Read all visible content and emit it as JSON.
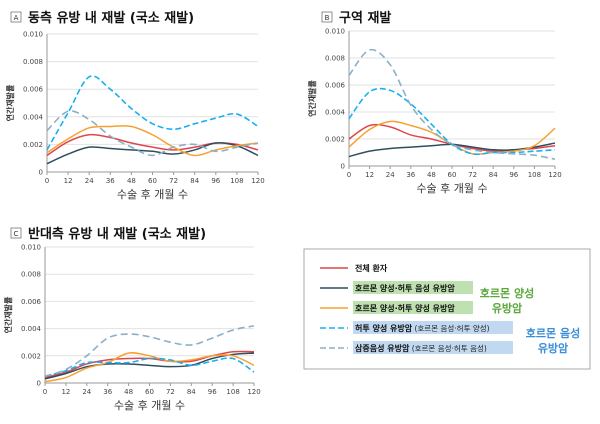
{
  "legend": {
    "series": [
      {
        "label": "전체 환자",
        "sub": "",
        "color": "#e0454a",
        "dash": false,
        "hl": ""
      },
      {
        "label": "호르몬 양성·허투 음성 유방암",
        "sub": "",
        "color": "#2f4f5f",
        "dash": false,
        "hl": "#bfe0b0"
      },
      {
        "label": "호르몬 양성·허투 양성 유방암",
        "sub": "",
        "color": "#f7a030",
        "dash": false,
        "hl": "#bfe0b0"
      },
      {
        "label": "허투 양성 유방암",
        "sub": "(호르몬 음성·허투 양성)",
        "color": "#1ab0f0",
        "dash": true,
        "hl": "#c0d8f0"
      },
      {
        "label": "삼중음성 유방암",
        "sub": "(호르몬 음성·허투 음성)",
        "color": "#8ab0c8",
        "dash": true,
        "hl": "#c0d8f0"
      }
    ],
    "group1": [
      "호르몬 양성",
      "유방암"
    ],
    "group1_color": "#5aa83a",
    "group2": [
      "호르몬 음성",
      "유방암"
    ],
    "group2_color": "#3a8ed8"
  },
  "chart_data": [
    {
      "type": "line",
      "badge": "A",
      "title": "동측 유방 내 재발 (국소 재발)",
      "xlabel": "수술 후 개월 수",
      "ylabel": "연간재발률",
      "x": [
        0,
        12,
        24,
        36,
        48,
        60,
        72,
        84,
        96,
        108,
        120
      ],
      "xticks": [
        "0",
        "12",
        "24",
        "36",
        "48",
        "60",
        "72",
        "84",
        "96",
        "108",
        "120"
      ],
      "yticks": [
        "0",
        "0.002",
        "0.004",
        "0.006",
        "0.008",
        "0.010"
      ],
      "ylim": [
        0,
        0.01
      ],
      "grid": true,
      "series": [
        {
          "name": "전체 환자",
          "values": [
            0.0012,
            0.0022,
            0.0027,
            0.0025,
            0.0021,
            0.0018,
            0.0016,
            0.0018,
            0.0021,
            0.002,
            0.0016
          ]
        },
        {
          "name": "호르몬 양성·허투 음성 유방암",
          "values": [
            0.0006,
            0.0013,
            0.0018,
            0.0017,
            0.0016,
            0.0015,
            0.0013,
            0.0016,
            0.0021,
            0.0019,
            0.0012
          ]
        },
        {
          "name": "호르몬 양성·허투 양성 유방암",
          "values": [
            0.0014,
            0.0024,
            0.0032,
            0.0033,
            0.0033,
            0.0027,
            0.0018,
            0.0012,
            0.0016,
            0.0019,
            0.0021
          ]
        },
        {
          "name": "허투 양성 유방암",
          "values": [
            0.0016,
            0.0043,
            0.0069,
            0.006,
            0.0046,
            0.0035,
            0.0031,
            0.0035,
            0.0039,
            0.0042,
            0.0033
          ]
        },
        {
          "name": "삼중음성 유방암",
          "values": [
            0.003,
            0.0044,
            0.0038,
            0.0026,
            0.0018,
            0.0012,
            0.0018,
            0.002,
            0.0015,
            0.0018,
            0.0021
          ]
        }
      ]
    },
    {
      "type": "line",
      "badge": "B",
      "title": "구역 재발",
      "xlabel": "수술 후 개월 수",
      "ylabel": "연간재발률",
      "x": [
        0,
        12,
        24,
        36,
        48,
        60,
        72,
        84,
        96,
        108,
        120
      ],
      "xticks": [
        "0",
        "12",
        "24",
        "36",
        "48",
        "60",
        "72",
        "84",
        "96",
        "108",
        "120"
      ],
      "yticks": [
        "0",
        "0.002",
        "0.004",
        "0.006",
        "0.008",
        "0.010"
      ],
      "ylim": [
        0,
        0.01
      ],
      "grid": true,
      "series": [
        {
          "name": "전체 환자",
          "values": [
            0.002,
            0.003,
            0.0029,
            0.0023,
            0.002,
            0.0016,
            0.0013,
            0.0011,
            0.0012,
            0.0013,
            0.0015
          ]
        },
        {
          "name": "호르몬 양성·허투 음성 유방암",
          "values": [
            0.0007,
            0.0011,
            0.0013,
            0.0014,
            0.0015,
            0.0016,
            0.0014,
            0.0012,
            0.0012,
            0.0014,
            0.0017
          ]
        },
        {
          "name": "호르몬 양성·허투 양성 유방암",
          "values": [
            0.0014,
            0.0027,
            0.0033,
            0.003,
            0.0025,
            0.0016,
            0.0009,
            0.001,
            0.0011,
            0.0015,
            0.0028
          ]
        },
        {
          "name": "허투 양성 유방암",
          "values": [
            0.0035,
            0.0055,
            0.0056,
            0.0046,
            0.0031,
            0.0016,
            0.0009,
            0.001,
            0.001,
            0.0011,
            0.0012
          ]
        },
        {
          "name": "삼중음성 유방암",
          "values": [
            0.0067,
            0.0086,
            0.0075,
            0.0045,
            0.0027,
            0.0016,
            0.0012,
            0.001,
            0.0009,
            0.0008,
            0.0005
          ]
        }
      ]
    },
    {
      "type": "line",
      "badge": "C",
      "title": "반대측 유방 내 재발 (국소 재발)",
      "xlabel": "수술 후 개월 수",
      "ylabel": "연간재발률",
      "x": [
        0,
        12,
        24,
        36,
        48,
        60,
        72,
        84,
        96,
        108,
        120
      ],
      "xticks": [
        "0",
        "12",
        "24",
        "36",
        "48",
        "60",
        "72",
        "84",
        "96",
        "108",
        "120"
      ],
      "yticks": [
        "0",
        "0.002",
        "0.004",
        "0.006",
        "0.008",
        "0.010"
      ],
      "ylim": [
        0,
        0.01
      ],
      "grid": true,
      "series": [
        {
          "name": "전체 환자",
          "values": [
            0.0004,
            0.0008,
            0.0014,
            0.0017,
            0.0018,
            0.0018,
            0.0016,
            0.0016,
            0.002,
            0.0023,
            0.0023
          ]
        },
        {
          "name": "호르몬 양성·허투 음성 유방암",
          "values": [
            0.0003,
            0.0007,
            0.0012,
            0.0014,
            0.0014,
            0.0013,
            0.0012,
            0.0013,
            0.0018,
            0.0021,
            0.0022
          ]
        },
        {
          "name": "호르몬 양성·허투 양성 유방암",
          "values": [
            0.0001,
            0.0004,
            0.0011,
            0.0015,
            0.0022,
            0.002,
            0.0016,
            0.0017,
            0.002,
            0.002,
            0.0013
          ]
        },
        {
          "name": "허투 양성 유방암",
          "values": [
            0.0005,
            0.0009,
            0.0015,
            0.0015,
            0.0015,
            0.0018,
            0.0017,
            0.0013,
            0.0016,
            0.0018,
            0.0008
          ]
        },
        {
          "name": "삼중음성 유방암",
          "values": [
            0.0005,
            0.001,
            0.002,
            0.0033,
            0.0036,
            0.0034,
            0.003,
            0.0028,
            0.0033,
            0.0039,
            0.0042
          ]
        }
      ]
    }
  ]
}
